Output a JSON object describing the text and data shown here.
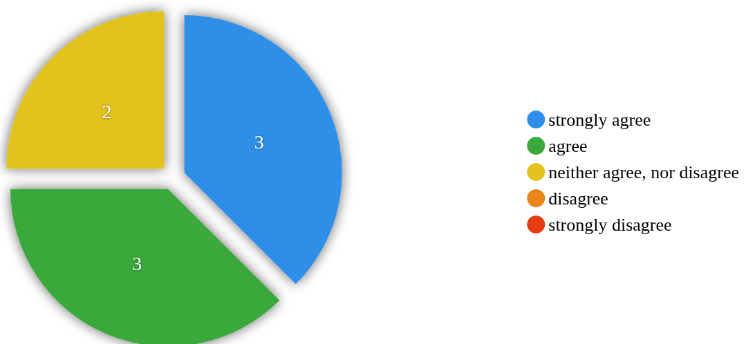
{
  "chart_data": {
    "type": "pie",
    "categories": [
      "strongly agree",
      "agree",
      "neither agree, nor disagree",
      "disagree",
      "strongly disagree"
    ],
    "values": [
      3,
      3,
      2,
      0,
      0
    ],
    "colors": [
      "#2f8fe8",
      "#3aa83a",
      "#e2c21f",
      "#e8861a",
      "#e63a12"
    ],
    "data_labels": true,
    "legend": "right"
  }
}
